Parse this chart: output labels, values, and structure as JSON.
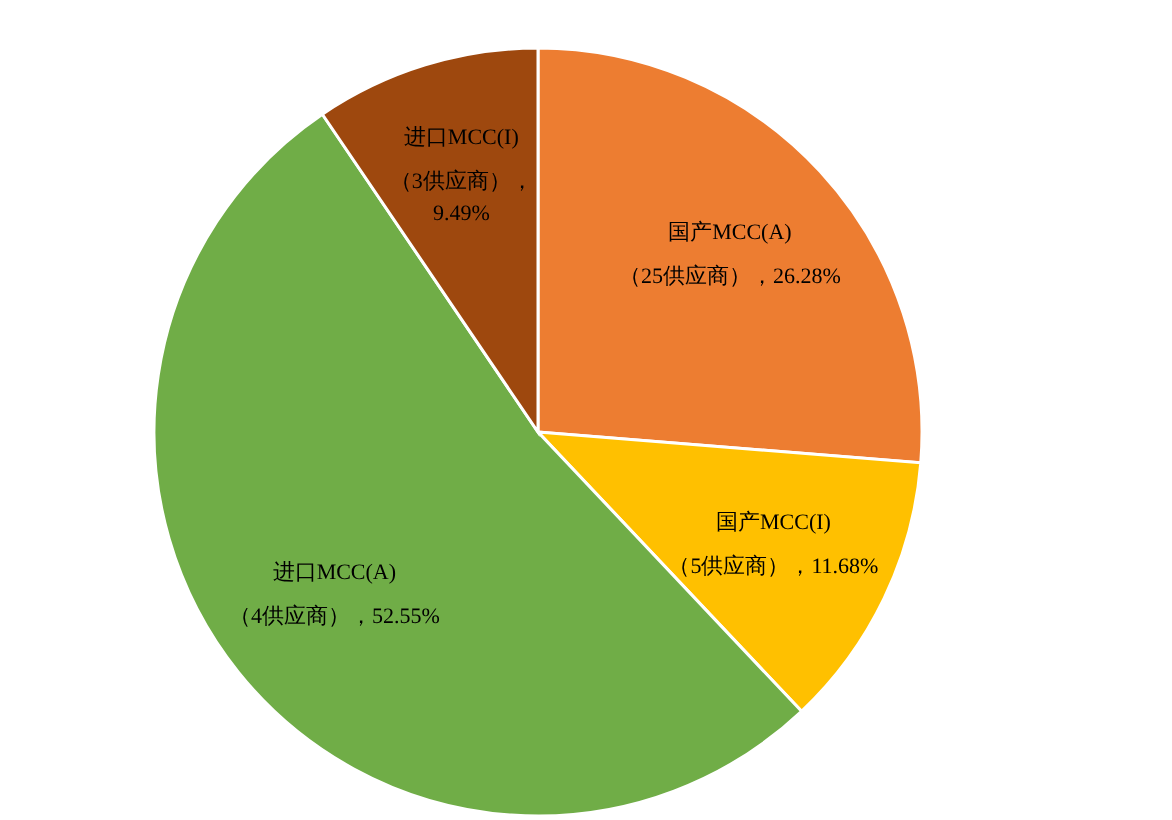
{
  "chart_data": {
    "type": "pie",
    "categories": [
      "国产MCC(A)",
      "国产MCC(I)",
      "进口MCC(A)",
      "进口MCC(I)"
    ],
    "values": [
      26.28,
      11.68,
      52.55,
      9.49
    ],
    "colors": [
      "#ed7d31",
      "#ffc000",
      "#70ad47",
      "#9e480e"
    ],
    "value_labels": [
      "（25供应商），26.28%",
      "（5供应商），11.68%",
      "（4供应商），52.55%",
      "（3供应商），9.49%"
    ],
    "legend": false
  }
}
